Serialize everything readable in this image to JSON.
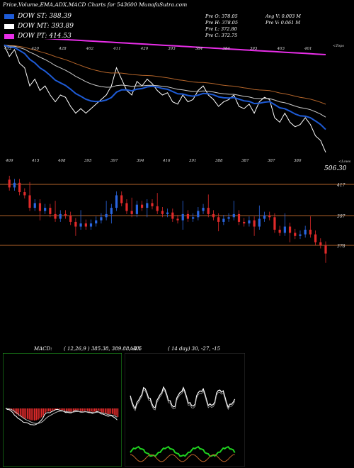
{
  "header": {
    "title": "Price,Volume,EMA,ADX,MACD Charts for 543600 MunafaSutra.com",
    "legend": [
      {
        "label": "DOW ST: 388.39",
        "color": "#1e5bd6"
      },
      {
        "label": "DOW MT: 393.89",
        "color": "#ffffff"
      },
      {
        "label": "DOW PT: 414.53",
        "color": "#e82ee8"
      }
    ],
    "stats_col1": [
      "Pre   O: 378.05",
      "Pre   H: 378.05",
      "Pre   L: 372.80",
      "Pre   C: 372.75"
    ],
    "stats_col2": [
      "Avg V: 0.003 M",
      "Pre   V: 0.061 M"
    ]
  },
  "price_panel": {
    "upper_tag": "<Tops",
    "lower_tag": "<Lows",
    "price_marker": "506.30",
    "top_labels": [
      "412",
      "420",
      "428",
      "402",
      "411",
      "420",
      "393",
      "384",
      "384",
      "393",
      "403",
      "401"
    ],
    "low_labels": [
      "409",
      "415",
      "408",
      "395",
      "397",
      "394",
      "416",
      "391",
      "388",
      "387",
      "387",
      "380"
    ],
    "h_levels": [
      {
        "label": "417",
        "value": 417
      },
      {
        "label": "397",
        "value": 397
      },
      {
        "label": "378",
        "value": 378
      }
    ]
  },
  "macd_panel": {
    "label": "MACD:",
    "values": "( 12,26,9 ) 385.38,  389.88,  -4.5"
  },
  "adx_panel": {
    "label": "ADX",
    "values": "( 14  day) 30,  -27,  -15"
  },
  "chart_data": [
    {
      "type": "candlestick",
      "title": "Price,Volume,EMA,ADX,MACD Charts for 543600 MunafaSutra.com",
      "ylim": [
        370,
        430
      ],
      "series_close": [
        420,
        415,
        418,
        412,
        410,
        402,
        405,
        400,
        402,
        398,
        395,
        398,
        397,
        393,
        390,
        392,
        390,
        392,
        394,
        396,
        398,
        402,
        410,
        405,
        400,
        398,
        404,
        402,
        405,
        403,
        400,
        398,
        399,
        395,
        394,
        398,
        395,
        396,
        400,
        402,
        398,
        396,
        393,
        395,
        396,
        398,
        393,
        392,
        394,
        390,
        395,
        397,
        396,
        388,
        386,
        390,
        386,
        384,
        385,
        388,
        385,
        380,
        378,
        372.75
      ],
      "h_lines": [
        417,
        397,
        378
      ],
      "ema_series": [
        {
          "name": "DOW ST",
          "value": 388.39,
          "color": "#1e5bd6"
        },
        {
          "name": "DOW MT",
          "value": 393.89,
          "color": "#ffffff"
        },
        {
          "name": "DOW PT",
          "value": 414.53,
          "color": "#e82ee8"
        }
      ]
    },
    {
      "type": "bar",
      "title": "MACD",
      "params": "12,26,9",
      "macd": 385.38,
      "signal": 389.88,
      "histogram": -4.5
    },
    {
      "type": "line",
      "title": "ADX",
      "period": "14 day",
      "values": [
        30,
        -27,
        -15
      ]
    }
  ]
}
